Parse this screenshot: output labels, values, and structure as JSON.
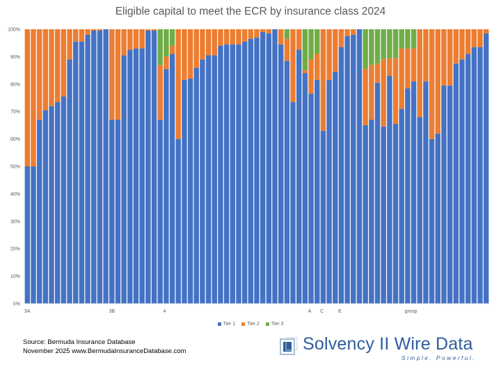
{
  "chart_data": {
    "type": "bar",
    "stacked": true,
    "title": "Eligible capital to meet the ECR by insurance class 2024",
    "xlabel": "",
    "ylabel": "",
    "ylim": [
      0,
      100
    ],
    "yticks": [
      "0%",
      "10%",
      "20%",
      "30%",
      "40%",
      "50%",
      "60%",
      "70%",
      "80%",
      "90%",
      "100%"
    ],
    "category_labels": [
      {
        "index": 0,
        "text": "3A"
      },
      {
        "index": 14,
        "text": "3B"
      },
      {
        "index": 23,
        "text": "4"
      },
      {
        "index": 47,
        "text": "A"
      },
      {
        "index": 49,
        "text": "C"
      },
      {
        "index": 52,
        "text": "E"
      },
      {
        "index": 63,
        "text": "group"
      }
    ],
    "legend_position": "bottom",
    "series": [
      {
        "name": "Tier 1",
        "color": "#4472C4",
        "values": [
          50,
          50,
          67,
          70.5,
          72,
          73.5,
          75.5,
          89,
          95.5,
          95.5,
          98,
          99.5,
          99.5,
          100,
          67,
          67,
          90.5,
          92.5,
          93,
          93,
          99.5,
          99.5,
          67,
          85.5,
          91,
          60,
          81.5,
          82,
          86,
          89,
          90.5,
          90.5,
          94,
          94.5,
          94.5,
          94.5,
          95.5,
          96.5,
          97,
          99,
          98.5,
          100,
          94.5,
          88.5,
          73.5,
          92.5,
          84,
          76.5,
          81.5,
          63,
          81.5,
          84.5,
          93.5,
          97.5,
          98,
          100,
          65,
          67,
          80.5,
          64.5,
          83,
          65.5,
          71,
          78.5,
          81,
          68,
          81,
          60,
          62,
          79.5,
          79.5,
          87.5,
          89,
          91,
          93.5,
          93.5,
          98.5
        ]
      },
      {
        "name": "Tier 2",
        "color": "#ED7D31",
        "values": [
          50,
          50,
          33,
          29.5,
          28,
          26.5,
          24.5,
          11,
          4.5,
          4.5,
          2,
          0.5,
          0.5,
          0,
          33,
          33,
          9.5,
          7.5,
          7,
          7,
          0.5,
          0.5,
          20,
          4.5,
          3,
          40,
          18.5,
          18,
          14,
          11,
          9.5,
          9.5,
          6,
          5.5,
          5.5,
          5.5,
          4.5,
          3.5,
          3,
          1,
          1.5,
          0,
          5.5,
          8,
          26.5,
          7.5,
          1,
          12.5,
          9.5,
          37,
          18.5,
          15.5,
          6.5,
          2.5,
          2,
          0,
          20.5,
          20,
          7,
          24.5,
          6.5,
          24,
          22,
          14.5,
          12,
          32,
          19,
          40,
          38,
          20.5,
          20.5,
          12.5,
          11,
          9,
          6.5,
          6.5,
          1.5
        ]
      },
      {
        "name": "Tier 3",
        "color": "#70AD47",
        "values": [
          0,
          0,
          0,
          0,
          0,
          0,
          0,
          0,
          0,
          0,
          0,
          0,
          0,
          0,
          0,
          0,
          0,
          0,
          0,
          0,
          0,
          0,
          13,
          10,
          6,
          0,
          0,
          0,
          0,
          0,
          0,
          0,
          0,
          0,
          0,
          0,
          0,
          0,
          0,
          0,
          0,
          0,
          0,
          3.5,
          0,
          0,
          15,
          11,
          9,
          0,
          0,
          0,
          0,
          0,
          0,
          0,
          14.5,
          13,
          12.5,
          11,
          10.5,
          10.5,
          7,
          7,
          7,
          0,
          0,
          0,
          0,
          0,
          0,
          0,
          0,
          0,
          0,
          0,
          0
        ]
      }
    ]
  },
  "legend": {
    "items": [
      "Tier 1",
      "Tier 2",
      "Tier 3"
    ],
    "colors": [
      "#4472C4",
      "#ED7D31",
      "#70AD47"
    ]
  },
  "source": {
    "line1": "Source: Bermuda Insurance Database",
    "line2": "November 2025 www.BermudaInsuranceDatabase.com"
  },
  "brand": {
    "name": "Solvency II Wire Data",
    "tagline": "Simple. Powerful.",
    "color": "#2f5d9e"
  }
}
